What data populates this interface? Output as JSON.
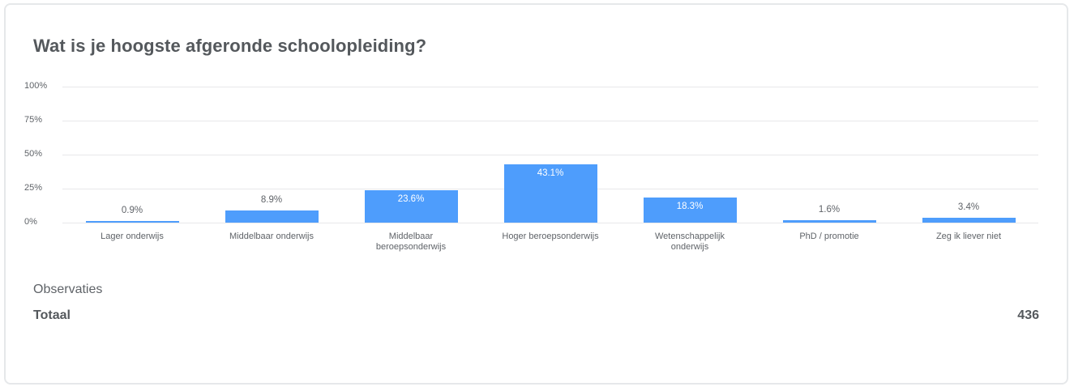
{
  "card": {
    "title": "Wat is je hoogste afgeronde schoolopleiding?"
  },
  "chart_data": {
    "type": "bar",
    "title": "Wat is je hoogste afgeronde schoolopleiding?",
    "xlabel": "",
    "ylabel": "",
    "ylim": [
      0,
      100
    ],
    "yticks": [
      "100%",
      "75%",
      "50%",
      "25%",
      "0%"
    ],
    "grid": true,
    "legend": "none",
    "bar_color": "#4e9dfc",
    "categories": [
      "Lager onderwijs",
      "Middelbaar onderwijs",
      "Middelbaar beroepsonderwijs",
      "Hoger beroepsonderwijs",
      "Wetenschappelijk onderwijs",
      "PhD / promotie",
      "Zeg ik liever niet"
    ],
    "values": [
      0.9,
      8.9,
      23.6,
      43.1,
      18.3,
      1.6,
      3.4
    ],
    "data_labels": [
      "0.9%",
      "8.9%",
      "23.6%",
      "43.1%",
      "18.3%",
      "1.6%",
      "3.4%"
    ]
  },
  "axis": {
    "ticks": [
      "100%",
      "75%",
      "50%",
      "25%",
      "0%"
    ]
  },
  "bars": [
    {
      "label_line1": "Lager onderwijs",
      "label_line2": "",
      "value_label": "0.9%"
    },
    {
      "label_line1": "Middelbaar onderwijs",
      "label_line2": "",
      "value_label": "8.9%"
    },
    {
      "label_line1": "Middelbaar",
      "label_line2": "beroepsonderwijs",
      "value_label": "23.6%"
    },
    {
      "label_line1": "Hoger beroepsonderwijs",
      "label_line2": "",
      "value_label": "43.1%"
    },
    {
      "label_line1": "Wetenschappelijk",
      "label_line2": "onderwijs",
      "value_label": "18.3%"
    },
    {
      "label_line1": "PhD / promotie",
      "label_line2": "",
      "value_label": "1.6%"
    },
    {
      "label_line1": "Zeg ik liever niet",
      "label_line2": "",
      "value_label": "3.4%"
    }
  ],
  "observations": {
    "heading": "Observaties",
    "total_label": "Totaal",
    "total_value": "436"
  }
}
